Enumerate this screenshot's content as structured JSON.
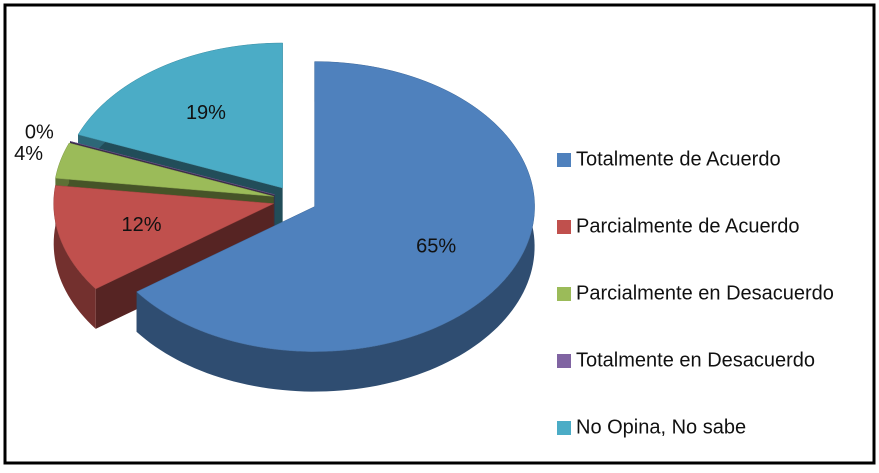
{
  "chart_data": {
    "type": "pie3d",
    "categories": [
      "Totalmente de Acuerdo",
      "Parcialmente de Acuerdo",
      "Parcialmente en Desacuerdo",
      "Totalmente en Desacuerdo",
      "No Opina, No sabe"
    ],
    "values": [
      65,
      12,
      4,
      0,
      19
    ],
    "value_labels": [
      "65%",
      "12%",
      "4%",
      "0%",
      "19%"
    ],
    "colors": [
      "#4f81bd",
      "#c0504d",
      "#9bbb59",
      "#8064a2",
      "#4bacc6"
    ],
    "legend": "right"
  }
}
